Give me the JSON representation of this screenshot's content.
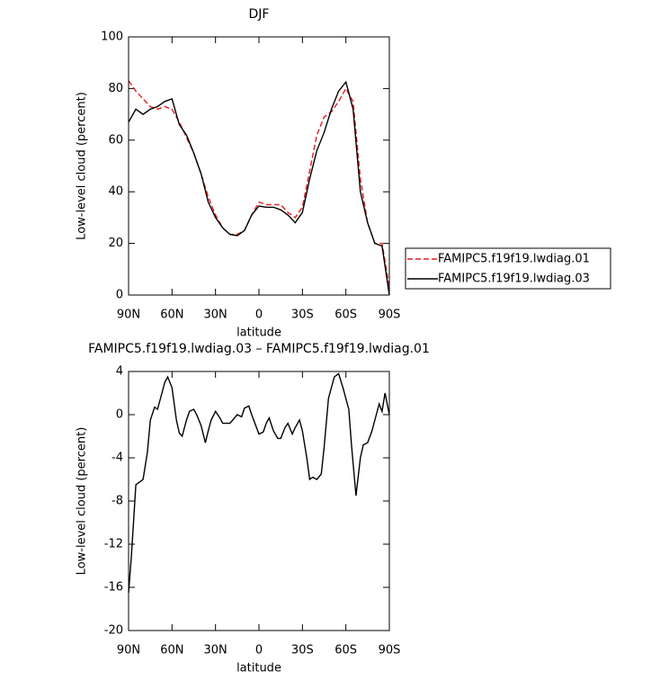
{
  "chart_data": [
    {
      "type": "line",
      "title": "DJF",
      "xlabel": "latitude",
      "ylabel": "Low-level cloud (percent)",
      "xlim": [
        90,
        -90
      ],
      "xticks": [
        {
          "value": 90,
          "label": "90N"
        },
        {
          "value": 60,
          "label": "60N"
        },
        {
          "value": 30,
          "label": "30N"
        },
        0,
        {
          "value": -30,
          "label": "30S"
        },
        {
          "value": -60,
          "label": "60S"
        },
        {
          "value": -90,
          "label": "90S"
        }
      ],
      "ylim": [
        0,
        100
      ],
      "yticks": [
        0,
        20,
        40,
        60,
        80,
        100
      ],
      "x": [
        90,
        85,
        80,
        75,
        70,
        65,
        60,
        55,
        50,
        45,
        40,
        35,
        30,
        25,
        20,
        15,
        10,
        5,
        0,
        -5,
        -10,
        -15,
        -20,
        -25,
        -30,
        -35,
        -40,
        -45,
        -50,
        -55,
        -60,
        -65,
        -70,
        -75,
        -80,
        -85,
        -90
      ],
      "legend": "right",
      "series": [
        {
          "name": "FAMIPC5.f19f19.lwdiag.01",
          "color": "#e41a1c",
          "dash": true,
          "values": [
            83,
            79,
            76,
            73,
            72,
            73,
            72,
            67,
            61,
            55,
            47,
            38,
            31,
            26,
            23.5,
            23.5,
            25,
            31,
            36,
            35,
            35,
            35,
            32,
            30,
            34,
            48,
            62,
            69,
            71,
            75,
            80,
            75,
            45,
            28,
            20,
            20,
            3
          ]
        },
        {
          "name": "FAMIPC5.f19f19.lwdiag.03",
          "color": "#000000",
          "dash": false,
          "values": [
            67,
            72,
            70,
            72,
            73,
            75,
            76,
            66,
            62,
            55,
            47,
            36,
            30,
            26,
            23.5,
            23,
            25,
            31,
            34.5,
            34,
            34,
            33,
            31,
            28,
            32,
            45,
            56,
            63,
            72,
            79,
            82.5,
            72,
            40,
            28,
            20,
            19,
            0
          ]
        }
      ]
    },
    {
      "type": "line",
      "title": "FAMIPC5.f19f19.lwdiag.03 – FAMIPC5.f19f19.lwdiag.01",
      "xlabel": "latitude",
      "ylabel": "Low-level cloud (percent)",
      "xlim": [
        90,
        -90
      ],
      "xticks": [
        {
          "value": 90,
          "label": "90N"
        },
        {
          "value": 60,
          "label": "60N"
        },
        {
          "value": 30,
          "label": "30N"
        },
        0,
        {
          "value": -30,
          "label": "30S"
        },
        {
          "value": -60,
          "label": "60S"
        },
        {
          "value": -90,
          "label": "90S"
        }
      ],
      "ylim": [
        -20,
        4
      ],
      "yticks": [
        -20,
        -16,
        -12,
        -8,
        -4,
        0,
        4
      ],
      "x": [
        90,
        88,
        85,
        82,
        80,
        77,
        75,
        72,
        70,
        67,
        65,
        63,
        60,
        57,
        55,
        53,
        50,
        48,
        45,
        43,
        40,
        37,
        35,
        33,
        30,
        27,
        25,
        20,
        15,
        12,
        10,
        7,
        5,
        0,
        -3,
        -5,
        -7,
        -10,
        -13,
        -15,
        -18,
        -20,
        -23,
        -25,
        -28,
        -30,
        -33,
        -35,
        -37,
        -40,
        -43,
        -45,
        -48,
        -52,
        -55,
        -58,
        -62,
        -64,
        -67,
        -70,
        -72,
        -75,
        -78,
        -80,
        -83,
        -85,
        -87,
        -90
      ],
      "series": [
        {
          "color": "#000000",
          "values": [
            -16.5,
            -13,
            -6.5,
            -6.2,
            -6,
            -3.5,
            -0.5,
            0.7,
            0.5,
            2,
            3,
            3.5,
            2.5,
            -0.5,
            -1.7,
            -2,
            -0.5,
            0.3,
            0.5,
            0,
            -1,
            -2.6,
            -1.5,
            -0.5,
            0.3,
            -0.3,
            -0.8,
            -0.8,
            0,
            -0.2,
            0.6,
            0.8,
            0,
            -1.8,
            -1.6,
            -0.8,
            -0.3,
            -1.5,
            -2.2,
            -2.2,
            -1.2,
            -0.8,
            -1.8,
            -1.2,
            -0.5,
            -1.5,
            -4,
            -6,
            -5.8,
            -6,
            -5.5,
            -3,
            1.5,
            3.5,
            3.8,
            2.5,
            0.5,
            -3,
            -7.5,
            -4,
            -2.8,
            -2.6,
            -1.5,
            -0.5,
            1,
            0.3,
            2,
            0
          ]
        }
      ]
    }
  ]
}
